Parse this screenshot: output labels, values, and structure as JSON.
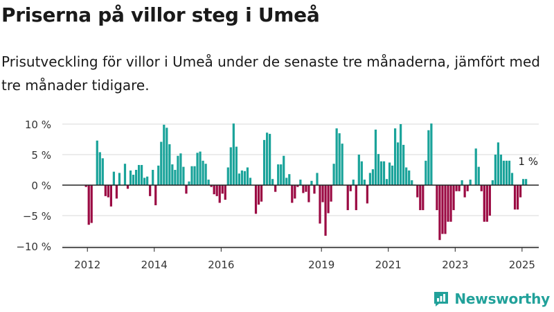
{
  "title": "Priserna på villor steg i Umeå",
  "subtitle": "Prisutveckling för villor i Umeå under de senaste tre månaderna, jämfört med tre månader tidigare.",
  "brand": {
    "name": "Newsworthy",
    "color": "#21a19a"
  },
  "colors": {
    "positive": "#1aa39a",
    "negative": "#9b0a43",
    "grid": "#d9d9d9",
    "axis": "#222222"
  },
  "chart_data": {
    "type": "bar",
    "title": "Priserna på villor steg i Umeå",
    "subtitle": "Prisutveckling för villor i Umeå under de senaste tre månaderna, jämfört med tre månader tidigare.",
    "xlabel": "",
    "ylabel": "",
    "unit": "%",
    "ylim": [
      -10,
      10
    ],
    "xlim": [
      2011.25,
      2025.5
    ],
    "y_ticks": [
      10,
      5,
      0,
      -5,
      -10
    ],
    "y_tick_labels": [
      "10 %",
      "5 %",
      "0 %",
      "−5 %",
      "−10 %"
    ],
    "x_ticks": [
      2012,
      2014,
      2016,
      2019,
      2021,
      2023,
      2025
    ],
    "x_tick_labels": [
      "2012",
      "2014",
      "2016",
      "2019",
      "2021",
      "2023",
      "2025"
    ],
    "grid": true,
    "legend": "none",
    "series": [
      {
        "start": 2011.958,
        "step": 0.0833,
        "values": [
          -0.3,
          -6.5,
          -6.2,
          0,
          7.3,
          5.4,
          4.4,
          -1.8,
          -2.0,
          -3.5,
          2.2,
          -2.2,
          2.0,
          0,
          3.5,
          -0.6,
          2.4,
          1.7,
          2.5,
          3.3,
          3.3,
          1.2,
          1.4,
          -1.8,
          2.5,
          -3.3,
          3.2,
          7.1,
          9.9,
          9.4,
          6.7,
          3.4,
          2.5,
          4.8,
          5.2,
          3.0,
          -1.4,
          0.6,
          3.1,
          3.1,
          5.3,
          5.5,
          4.0,
          3.5,
          0.9,
          -0.3,
          -1.5,
          -1.8,
          -2.9,
          -1.4,
          -2.4,
          2.9,
          6.2,
          10.1,
          6.3,
          1.9,
          2.4,
          2.3,
          2.9,
          1.2,
          0,
          -4.7,
          -3.2,
          -2.7,
          7.4,
          8.6,
          8.4,
          1.0,
          -1.1,
          3.4,
          3.4,
          4.8,
          1.2,
          1.8,
          -2.9,
          -2.2,
          -0.3,
          0.9,
          -1.3,
          -1.1,
          -2.8,
          0.7,
          -1.4,
          2.0,
          -6.3,
          -2.8,
          -8.3,
          -4.6,
          -2.7,
          3.5,
          9.3,
          8.5,
          6.8,
          0,
          -4.1,
          -1.0,
          0.9,
          -4.1,
          5.0,
          3.9,
          0.9,
          -3.0,
          2.0,
          2.6,
          9.1,
          5.1,
          3.9,
          3.9,
          1.0,
          3.7,
          3.2,
          9.3,
          7.0,
          10.0,
          6.6,
          2.9,
          2.4,
          0.8,
          0.1,
          -2.0,
          -4.1,
          -4.1,
          4.0,
          9.0,
          10.1,
          0,
          -4.1,
          -9.0,
          -8.0,
          -8.0,
          -6.0,
          -6.0,
          -4.1,
          -1.0,
          -1.0,
          0.8,
          -2.0,
          -1.0,
          0.9,
          0,
          6.0,
          3.0,
          -1.0,
          -6.0,
          -6.0,
          -5.0,
          0.8,
          5.0,
          7.0,
          5.0,
          4.0,
          4.0,
          4.0,
          2.0,
          -4.0,
          -4.0,
          -2.0,
          1.0,
          1.0
        ]
      }
    ],
    "annotations": [
      {
        "text": "1 %",
        "x": 2025.1,
        "y": 1.0
      }
    ]
  }
}
